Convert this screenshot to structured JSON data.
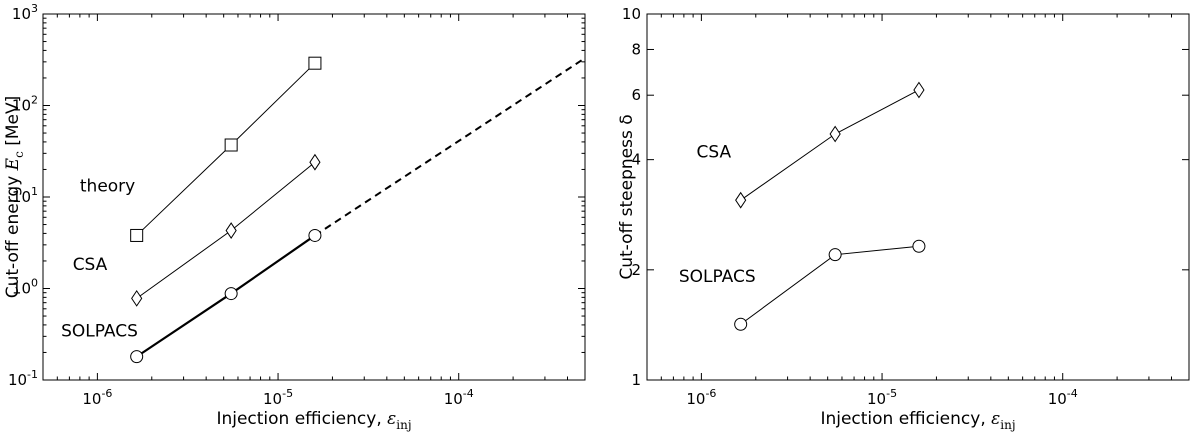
{
  "chart_data": [
    {
      "type": "scatter",
      "title": "",
      "xlabel": "Injection efficiency, ε_inj",
      "ylabel": "Cut-off energy E_c [MeV]",
      "xscale": "log",
      "yscale": "log",
      "xlim": [
        5e-07,
        0.0005
      ],
      "ylim": [
        0.1,
        1000
      ],
      "x_ticks": [
        {
          "value": 1e-06,
          "base": "10",
          "exp": "-6"
        },
        {
          "value": 1e-05,
          "base": "10",
          "exp": "-5"
        },
        {
          "value": 0.0001,
          "base": "10",
          "exp": "-4"
        }
      ],
      "y_ticks": [
        {
          "value": 0.1,
          "base": "10",
          "exp": "-1"
        },
        {
          "value": 1,
          "base": "10",
          "exp": "0"
        },
        {
          "value": 10,
          "base": "10",
          "exp": "1"
        },
        {
          "value": 100,
          "base": "10",
          "exp": "2"
        },
        {
          "value": 1000,
          "base": "10",
          "exp": "3"
        }
      ],
      "grid": false,
      "series": [
        {
          "name": "theory",
          "marker": "square",
          "x": [
            1.65e-06,
            5.5e-06,
            1.6e-05
          ],
          "y": [
            3.8,
            37,
            290
          ]
        },
        {
          "name": "CSA",
          "marker": "diamond",
          "x": [
            1.65e-06,
            5.5e-06,
            1.6e-05
          ],
          "y": [
            0.78,
            4.3,
            24
          ]
        },
        {
          "name": "SOLPACS",
          "marker": "circle",
          "x": [
            1.65e-06,
            5.5e-06,
            1.6e-05
          ],
          "y": [
            0.18,
            0.88,
            3.8
          ],
          "thick_line": true
        }
      ],
      "extrapolation": {
        "style": "dashed",
        "x": [
          1.6e-05,
          0.0005
        ],
        "y": [
          3.8,
          330
        ]
      },
      "annotations": [
        {
          "text": "theory",
          "x": 8e-07,
          "y": 11.5
        },
        {
          "text": "CSA",
          "x": 7.3e-07,
          "y": 1.6
        },
        {
          "text": "SOLPACS",
          "x": 6.3e-07,
          "y": 0.3
        }
      ]
    },
    {
      "type": "scatter",
      "title": "",
      "xlabel": "Injection efficiency, ε_inj",
      "ylabel": "Cut-off steepness δ",
      "xscale": "log",
      "yscale": "log",
      "xlim": [
        5e-07,
        0.0005
      ],
      "ylim": [
        1,
        10
      ],
      "x_ticks": [
        {
          "value": 1e-06,
          "base": "10",
          "exp": "-6"
        },
        {
          "value": 1e-05,
          "base": "10",
          "exp": "-5"
        },
        {
          "value": 0.0001,
          "base": "10",
          "exp": "-4"
        }
      ],
      "y_ticks": [
        {
          "value": 1,
          "label": "1"
        },
        {
          "value": 2,
          "label": "2"
        },
        {
          "value": 4,
          "label": "4"
        },
        {
          "value": 6,
          "label": "6"
        },
        {
          "value": 8,
          "label": "8"
        },
        {
          "value": 10,
          "label": "10"
        }
      ],
      "grid": false,
      "series": [
        {
          "name": "CSA",
          "marker": "diamond",
          "x": [
            1.65e-06,
            5.5e-06,
            1.6e-05
          ],
          "y": [
            3.1,
            4.7,
            6.2
          ]
        },
        {
          "name": "SOLPACS",
          "marker": "circle",
          "x": [
            1.65e-06,
            5.5e-06,
            1.6e-05
          ],
          "y": [
            1.42,
            2.2,
            2.32
          ]
        }
      ],
      "annotations": [
        {
          "text": "CSA",
          "x": 9.4e-07,
          "y": 4.05
        },
        {
          "text": "SOLPACS",
          "x": 7.5e-07,
          "y": 1.85
        }
      ]
    }
  ]
}
